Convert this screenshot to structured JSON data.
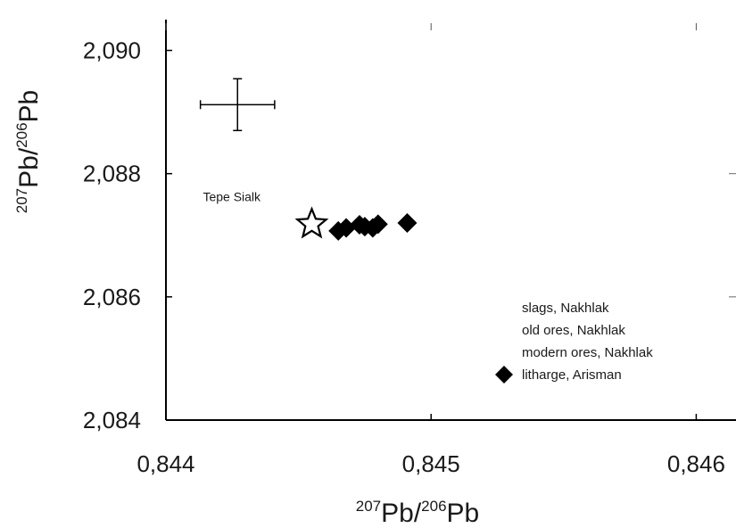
{
  "chart_data": {
    "type": "scatter",
    "xlabel": {
      "base1": "Pb",
      "sup1": "207",
      "sep": "/",
      "sup2": "206",
      "base2": "Pb"
    },
    "ylabel": {
      "base1": "Pb",
      "sup1": "207",
      "sep": "/",
      "sup2": "206",
      "base2": "Pb"
    },
    "xlim": [
      0.844,
      0.84615
    ],
    "ylim": [
      2.084,
      2.0905
    ],
    "x_ticks": [
      {
        "value": 0.844,
        "label": "0,844"
      },
      {
        "value": 0.845,
        "label": "0,845"
      },
      {
        "value": 0.846,
        "label": "0,846"
      }
    ],
    "y_ticks": [
      {
        "value": 2.084,
        "label": "2,084"
      },
      {
        "value": 2.086,
        "label": "2,086"
      },
      {
        "value": 2.088,
        "label": "2,088"
      },
      {
        "value": 2.09,
        "label": "2,090"
      }
    ],
    "error_bar": {
      "x": 0.84427,
      "y": 2.08912,
      "x_err": 0.00014,
      "y_err": 0.00042
    },
    "star": {
      "x": 0.84455,
      "y": 2.08718,
      "label": "Tepe Sialk"
    },
    "series": [
      {
        "name": "litharge, Arisman",
        "marker": "diamond",
        "color": "#000000",
        "points": [
          {
            "x": 0.84465,
            "y": 2.08707
          },
          {
            "x": 0.84468,
            "y": 2.08712
          },
          {
            "x": 0.84473,
            "y": 2.08717
          },
          {
            "x": 0.84475,
            "y": 2.08714
          },
          {
            "x": 0.84478,
            "y": 2.08712
          },
          {
            "x": 0.8448,
            "y": 2.08718
          },
          {
            "x": 0.84491,
            "y": 2.0872
          }
        ]
      }
    ],
    "legend_entries": [
      "slags, Nakhlak",
      "old ores, Nakhlak",
      "modern ores, Nakhlak",
      "litharge, Arisman"
    ],
    "legend_placement": "bottom-right",
    "grid": false
  }
}
